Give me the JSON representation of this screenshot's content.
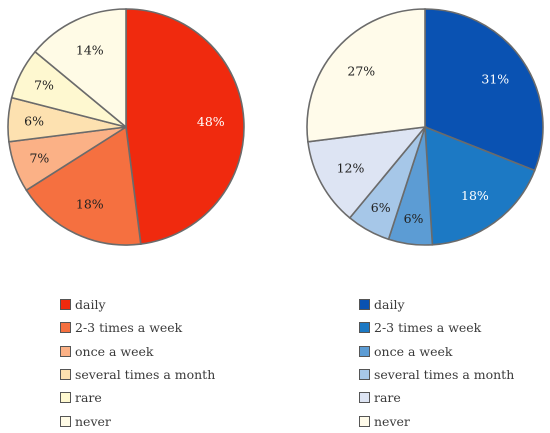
{
  "chart_data": [
    {
      "type": "pie",
      "categories": [
        "daily",
        "2-3 times a week",
        "once a week",
        "several times a month",
        "rare",
        "never"
      ],
      "values": [
        48,
        18,
        7,
        6,
        7,
        14
      ],
      "labels": [
        "48%",
        "18%",
        "7%",
        "6%",
        "7%",
        "14%"
      ],
      "colors": [
        "#f02a0e",
        "#f57040",
        "#fbb186",
        "#fde1b0",
        "#fef8d0",
        "#fffbe6"
      ],
      "label_colors": [
        "#ffffff",
        "#222222",
        "#222222",
        "#222222",
        "#222222",
        "#222222"
      ],
      "legend": "bottom"
    },
    {
      "type": "pie",
      "categories": [
        "daily",
        "2-3 times a week",
        "once a week",
        "several times a month",
        "rare",
        "never"
      ],
      "values": [
        31,
        18,
        6,
        6,
        12,
        27
      ],
      "labels": [
        "31%",
        "18%",
        "6%",
        "6%",
        "12%",
        "27%"
      ],
      "colors": [
        "#0a52b2",
        "#1c79c4",
        "#5c9cd4",
        "#a6c7e8",
        "#dde4f3",
        "#fffbea"
      ],
      "label_colors": [
        "#ffffff",
        "#ffffff",
        "#222222",
        "#222222",
        "#222222",
        "#222222"
      ],
      "legend": "bottom"
    }
  ]
}
